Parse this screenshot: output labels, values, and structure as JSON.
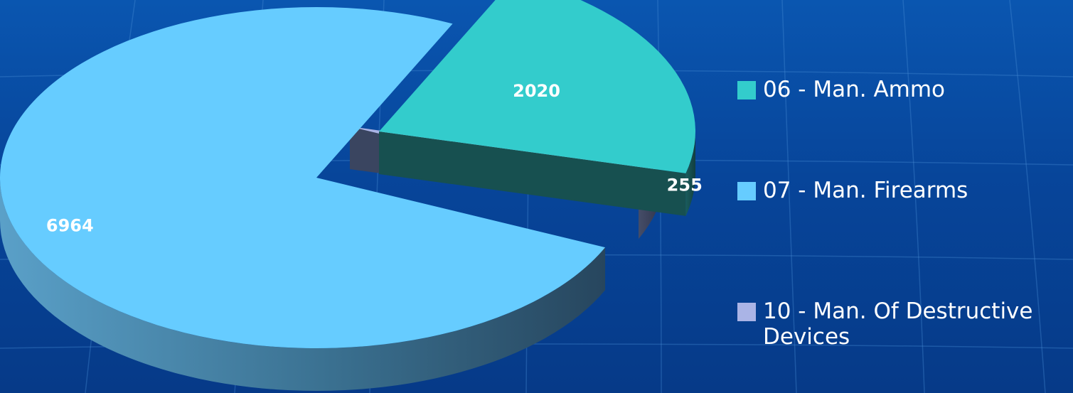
{
  "background": {
    "colors": [
      "#0a56b0",
      "#063a88"
    ],
    "grid_color": "#4a8fd8"
  },
  "chart_data": {
    "type": "pie",
    "style": "3d-exploded",
    "title": "",
    "legend_position": "right",
    "slices": [
      {
        "label": "06 - Man. Ammo",
        "value": 2020,
        "color": "#33cccc",
        "side_color": "#175050"
      },
      {
        "label": "10 - Man. Of Destructive Devices",
        "value": 255,
        "color": "#aab4e6",
        "side_color": "#3a4560"
      },
      {
        "label": "07 - Man. Firearms",
        "value": 6964,
        "color": "#66ccff",
        "side_color": "#2e5a78"
      }
    ],
    "data_labels": [
      "2020",
      "255",
      "6964"
    ]
  },
  "legend": {
    "items": [
      {
        "label": "06 - Man. Ammo",
        "color": "#33cccc"
      },
      {
        "label": "07 - Man. Firearms",
        "color": "#66ccff"
      },
      {
        "label": "10 - Man. Of Destructive Devices",
        "color": "#aab4e6"
      }
    ]
  }
}
